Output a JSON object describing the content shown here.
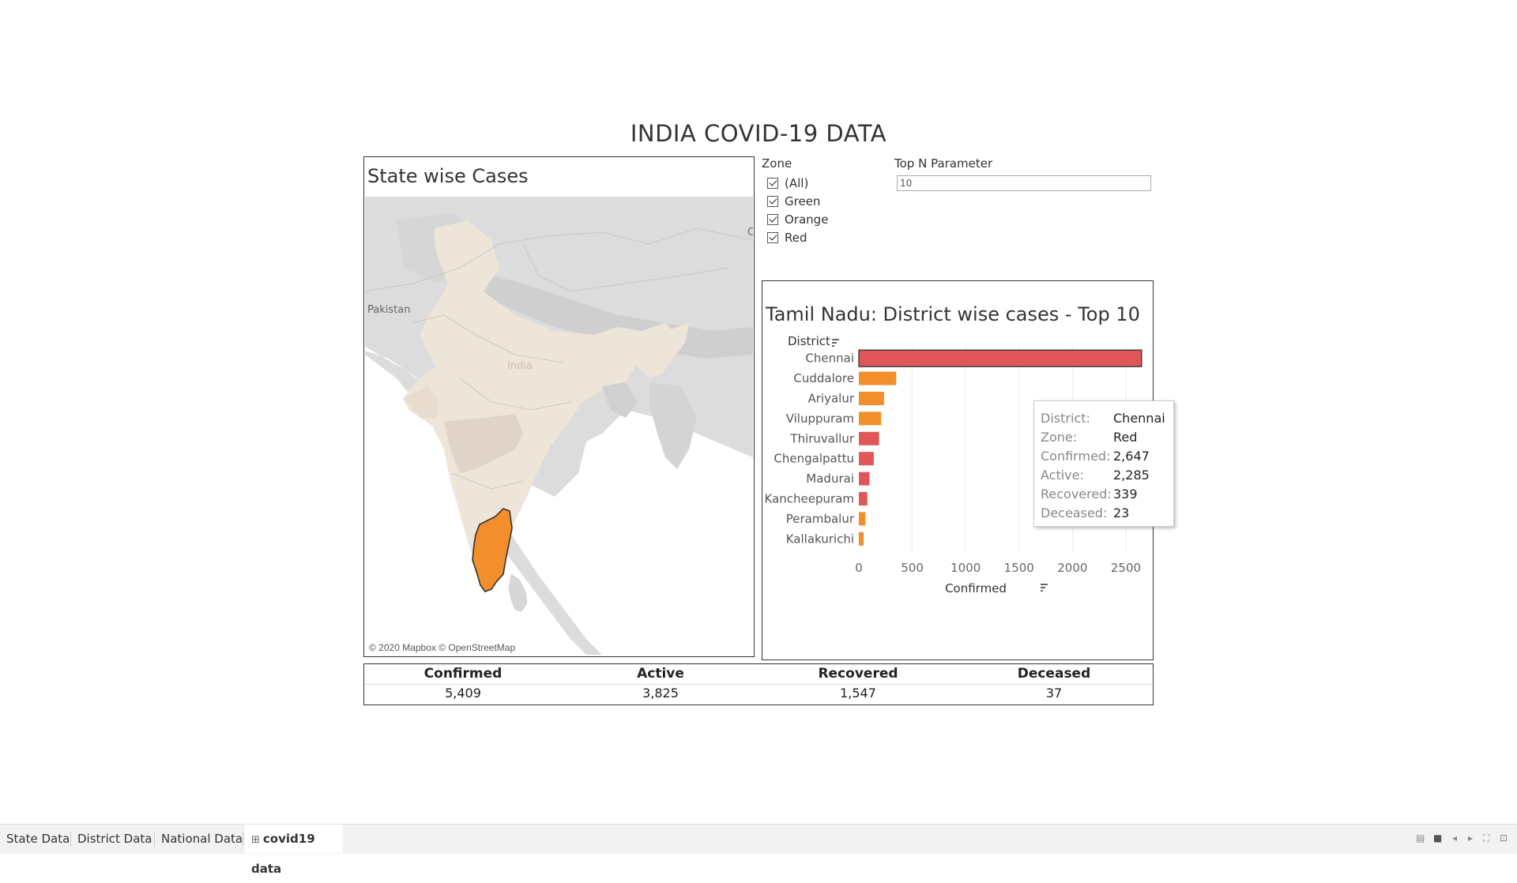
{
  "title": "INDIA COVID-19 DATA",
  "map_panel": {
    "title": "State wise Cases",
    "labels": {
      "pakistan": "Pakistan",
      "india": "India",
      "china_fragment": "Cl"
    },
    "attribution": "© 2020 Mapbox © OpenStreetMap",
    "highlighted_state": "Tamil Nadu",
    "highlight_color": "#f28e2b"
  },
  "zone_filter": {
    "title": "Zone",
    "items": [
      {
        "label": "(All)",
        "checked": true
      },
      {
        "label": "Green",
        "checked": true
      },
      {
        "label": "Orange",
        "checked": true
      },
      {
        "label": "Red",
        "checked": true
      }
    ]
  },
  "top_n": {
    "label": "Top N Parameter",
    "value": "10"
  },
  "bar_panel": {
    "title": "Tamil Nadu: District wise cases - Top 10"
  },
  "chart_data": {
    "type": "bar",
    "orientation": "horizontal",
    "title": "Tamil Nadu: District wise cases - Top 10",
    "ylabel": "District",
    "xlabel": "Confirmed",
    "xlim": [
      0,
      2700
    ],
    "xticks": [
      0,
      500,
      1000,
      1500,
      2000,
      2500
    ],
    "grid": true,
    "categories": [
      "Chennai",
      "Cuddalore",
      "Ariyalur",
      "Viluppuram",
      "Thiruvallur",
      "Chengalpattu",
      "Madurai",
      "Kancheepuram",
      "Perambalur",
      "Kallakurichi"
    ],
    "values": [
      2647,
      350,
      236,
      210,
      190,
      140,
      100,
      80,
      62,
      45
    ],
    "zones": [
      "Red",
      "Orange",
      "Orange",
      "Orange",
      "Red",
      "Red",
      "Red",
      "Red",
      "Orange",
      "Orange"
    ],
    "zone_colors": {
      "Red": "#e15759",
      "Orange": "#f28e2b"
    }
  },
  "tooltip": {
    "rows": [
      {
        "key": "District:",
        "value": "Chennai"
      },
      {
        "key": "Zone:",
        "value": "Red"
      },
      {
        "key": "Confirmed:",
        "value": "2,647"
      },
      {
        "key": "Active:",
        "value": "2,285"
      },
      {
        "key": "Recovered:",
        "value": "339"
      },
      {
        "key": "Deceased:",
        "value": "23"
      }
    ]
  },
  "summary": {
    "columns": [
      {
        "header": "Confirmed",
        "value": "5,409"
      },
      {
        "header": "Active",
        "value": "3,825"
      },
      {
        "header": "Recovered",
        "value": "1,547"
      },
      {
        "header": "Deceased",
        "value": "37"
      }
    ]
  },
  "tabs": [
    {
      "label": "State Data",
      "active": false
    },
    {
      "label": "District Data",
      "active": false
    },
    {
      "label": "National Data",
      "active": false
    },
    {
      "label": "covid19 data",
      "active": true,
      "icon": "dashboard-icon"
    }
  ]
}
